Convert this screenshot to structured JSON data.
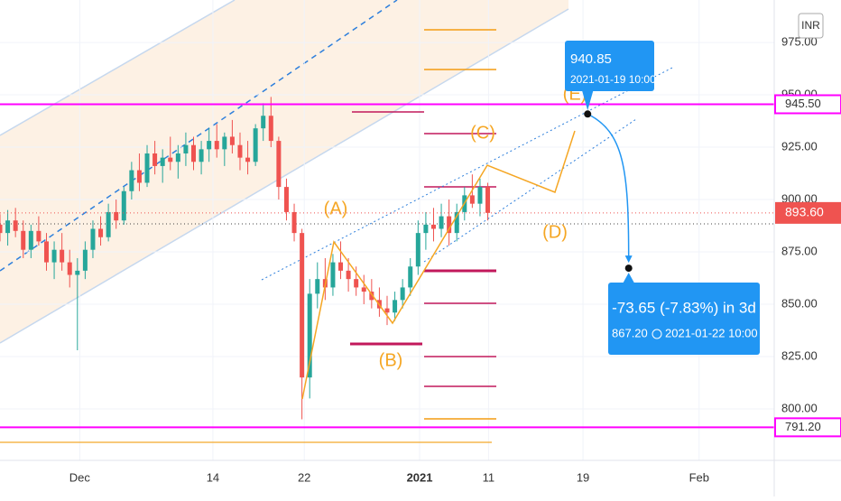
{
  "chart_data": {
    "type": "candlestick",
    "currency": "INR",
    "x": [
      0,
      1,
      2,
      3,
      4,
      5,
      6,
      7,
      8,
      9,
      10,
      11,
      12,
      13,
      14,
      15,
      16,
      17,
      18,
      19,
      20,
      21,
      22,
      23,
      24,
      25,
      26,
      27,
      28,
      29,
      30,
      31,
      32,
      33,
      34,
      35,
      36,
      37,
      38,
      39,
      40,
      41,
      42,
      43,
      44,
      45,
      46,
      47,
      48,
      49,
      50,
      51,
      52,
      53,
      54,
      55,
      56,
      57,
      58,
      59,
      60,
      61,
      62,
      63
    ],
    "open": [
      888,
      884,
      890,
      885,
      876,
      885,
      880,
      870,
      876,
      870,
      864,
      866,
      876,
      886,
      882,
      894,
      890,
      904,
      914,
      908,
      922,
      916,
      920,
      918,
      922,
      926,
      918,
      924,
      928,
      924,
      930,
      926,
      920,
      918,
      934,
      940,
      928,
      906,
      894,
      884,
      815,
      855,
      862,
      858,
      870,
      866,
      862,
      858,
      856,
      852,
      848,
      846,
      852,
      858,
      868,
      884,
      888,
      886,
      892,
      884,
      894,
      902,
      898,
      906
    ],
    "high": [
      893,
      895,
      896,
      890,
      888,
      892,
      884,
      880,
      884,
      876,
      872,
      880,
      890,
      892,
      898,
      900,
      906,
      918,
      922,
      926,
      928,
      924,
      930,
      926,
      932,
      930,
      928,
      934,
      936,
      932,
      938,
      932,
      928,
      936,
      946,
      949,
      930,
      910,
      898,
      886,
      862,
      870,
      872,
      874,
      880,
      872,
      868,
      864,
      862,
      858,
      854,
      856,
      862,
      872,
      890,
      894,
      896,
      898,
      900,
      898,
      906,
      912,
      910,
      908
    ],
    "low": [
      880,
      878,
      882,
      872,
      872,
      878,
      866,
      862,
      866,
      858,
      828,
      862,
      872,
      878,
      880,
      886,
      888,
      900,
      904,
      906,
      912,
      908,
      914,
      910,
      916,
      914,
      912,
      918,
      920,
      916,
      922,
      914,
      912,
      916,
      928,
      925,
      900,
      890,
      880,
      795,
      805,
      848,
      852,
      854,
      862,
      856,
      854,
      850,
      848,
      844,
      840,
      842,
      848,
      854,
      864,
      876,
      880,
      882,
      878,
      880,
      890,
      896,
      892,
      890
    ],
    "close": [
      884,
      890,
      885,
      876,
      885,
      880,
      870,
      876,
      870,
      864,
      866,
      876,
      886,
      882,
      894,
      890,
      904,
      914,
      908,
      922,
      916,
      920,
      918,
      922,
      926,
      918,
      924,
      928,
      924,
      930,
      926,
      920,
      918,
      934,
      940,
      928,
      906,
      894,
      884,
      815,
      855,
      862,
      858,
      870,
      866,
      862,
      858,
      856,
      852,
      848,
      846,
      852,
      858,
      868,
      884,
      888,
      886,
      892,
      884,
      894,
      902,
      898,
      906,
      893.6
    ],
    "up_color": "#26a69a",
    "down_color": "#ef5350",
    "xlim": [
      0,
      100
    ],
    "xticks": [
      {
        "value": 10.3,
        "label": "Dec"
      },
      {
        "value": 27.5,
        "label": "14"
      },
      {
        "value": 39.3,
        "label": "22"
      },
      {
        "value": 54.2,
        "label": "2021"
      },
      {
        "value": 63.1,
        "label": "11"
      },
      {
        "value": 75.3,
        "label": "19"
      },
      {
        "value": 90.3,
        "label": "Feb"
      }
    ],
    "ylim": [
      775.4,
      995.3
    ],
    "yticks": [
      {
        "value": 800,
        "label": "800.00"
      },
      {
        "value": 825,
        "label": "825.00"
      },
      {
        "value": 850,
        "label": "850.00"
      },
      {
        "value": 875,
        "label": "875.00"
      },
      {
        "value": 900,
        "label": "900.00"
      },
      {
        "value": 925,
        "label": "925.00"
      },
      {
        "value": 950,
        "label": "950.00"
      },
      {
        "value": 975,
        "label": "975.00"
      }
    ],
    "grid": true,
    "levels": [
      {
        "value": 945.5,
        "label": "945.50",
        "color": "#ff00ff"
      },
      {
        "value": 791.2,
        "label": "791.20",
        "color": "#ff00ff"
      }
    ],
    "last_price": {
      "value": 893.6,
      "label": "893.60",
      "color": "#ef5350"
    },
    "waves": [
      "(A)",
      "(B)",
      "(C)",
      "(D)",
      "(E)"
    ],
    "projection": {
      "start": {
        "value": 940.85,
        "label": "940.85",
        "time": "2021-01-19 10:00",
        "x": 75.9
      },
      "end": {
        "value": 867.2,
        "label": "867.20",
        "time": "2021-01-22  10:00",
        "x": 81.2,
        "change": "-73.65 (-7.83%) in 3d"
      }
    }
  }
}
